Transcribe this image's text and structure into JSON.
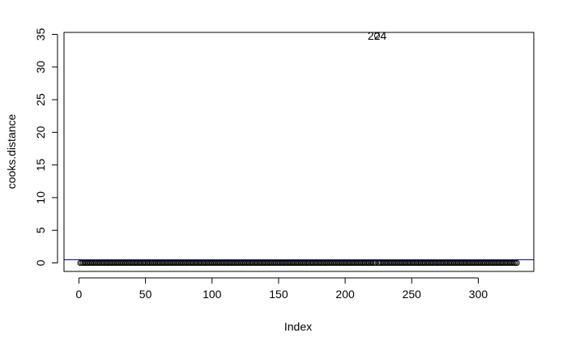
{
  "chart_data": {
    "type": "scatter",
    "title": "",
    "xlabel": "Index",
    "ylabel": "cooks.distance",
    "xlim": [
      1,
      329
    ],
    "ylim": [
      0,
      35
    ],
    "x_ticks": [
      0,
      50,
      100,
      150,
      200,
      250,
      300
    ],
    "y_ticks": [
      0,
      5,
      10,
      15,
      20,
      25,
      30,
      35
    ],
    "point_count": 329,
    "points": [],
    "highlighted_points": [
      {
        "index": 224,
        "value": 34.8,
        "label": "224"
      }
    ],
    "reference_line": {
      "y": 0.48,
      "color": "#00008b"
    },
    "point_marker": "open-circle",
    "point_color": "#000000",
    "label_color": "#0000ff",
    "grid": false,
    "legend": "none"
  }
}
